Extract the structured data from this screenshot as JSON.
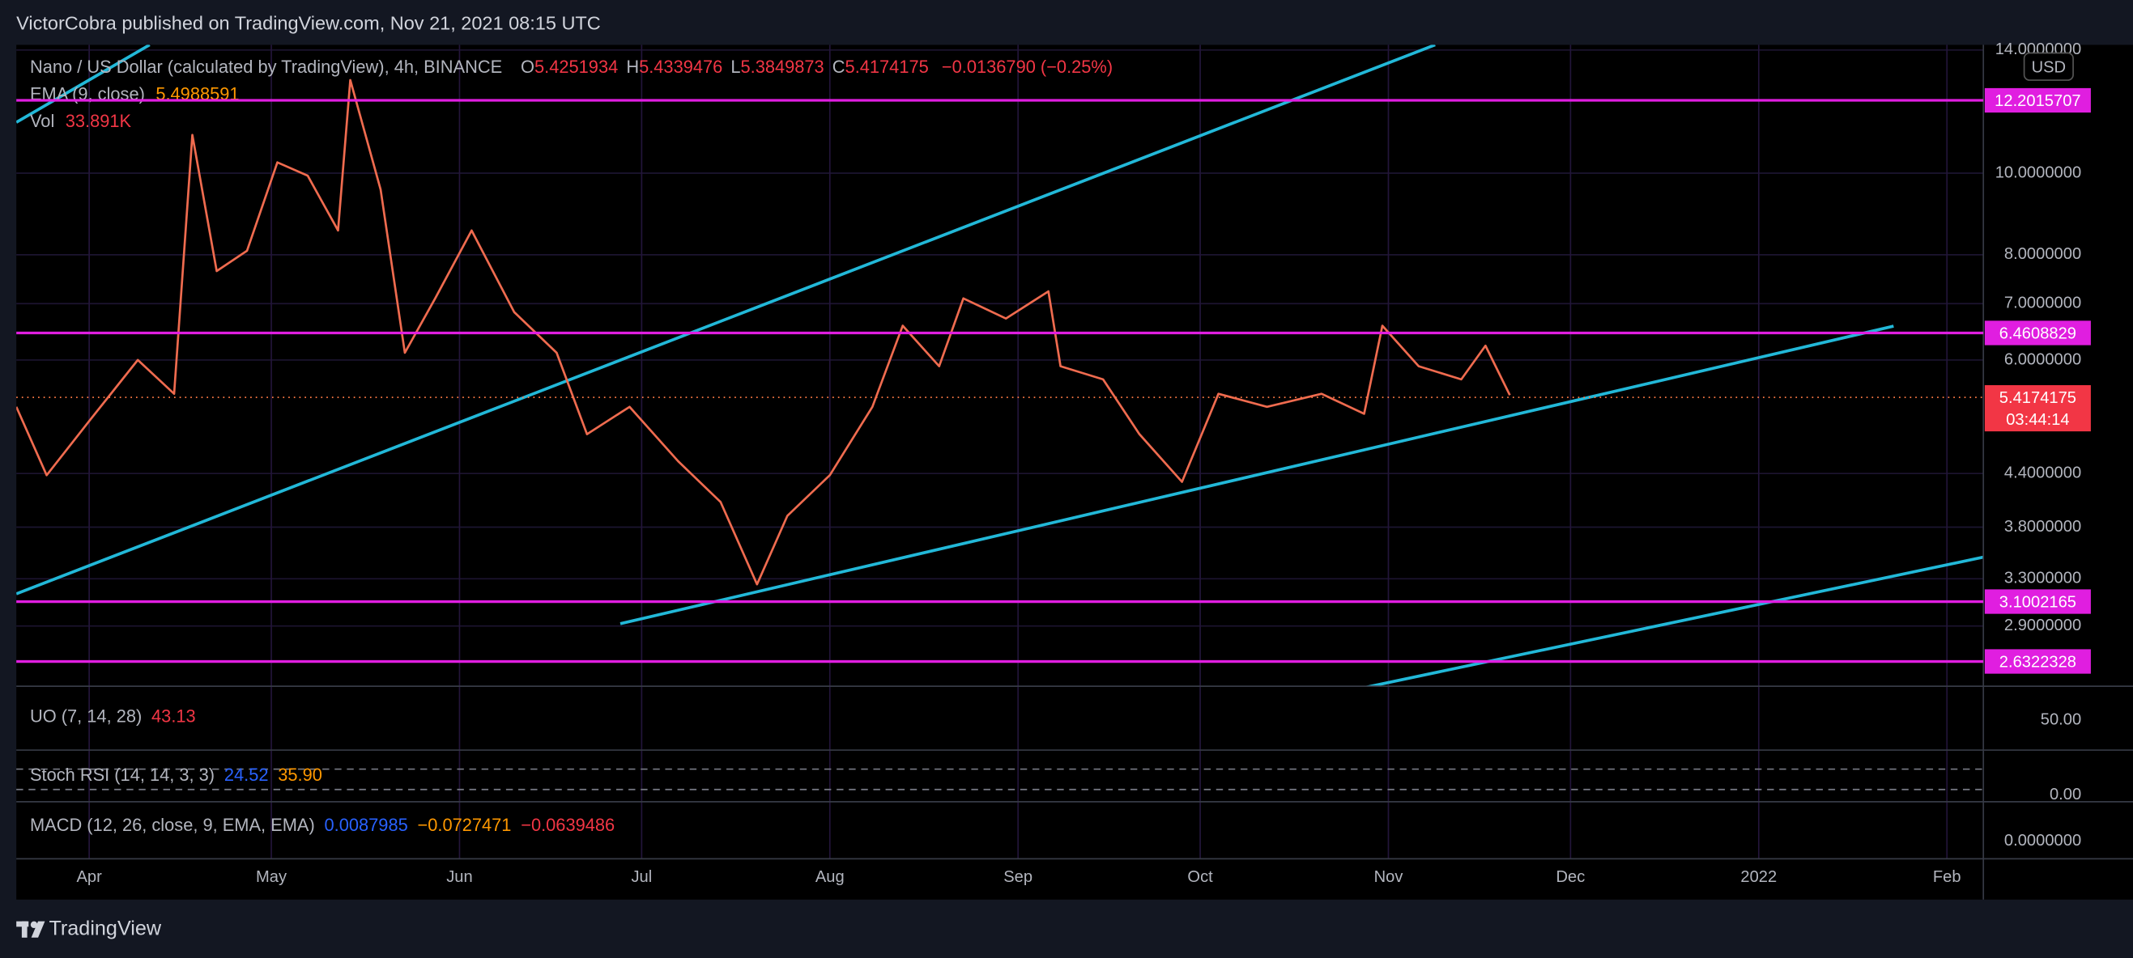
{
  "header": {
    "title": "VictorCobra published on TradingView.com, Nov 21, 2021 08:15 UTC"
  },
  "chart_data": {
    "type": "line",
    "symbol": "Nano / US Dollar (calculated by TradingView), 4h, BINANCE",
    "ohlc": [
      {
        "label": "O",
        "value": "5.4251934"
      },
      {
        "label": "H",
        "value": "5.4339476"
      },
      {
        "label": "L",
        "value": "5.3849873"
      },
      {
        "label": "C",
        "value": "5.4174175"
      }
    ],
    "change": "−0.0136790 (−0.25%)",
    "indicators": [
      {
        "name": "EMA (9, close)",
        "value": "5.4988591"
      },
      {
        "name": "Vol",
        "value": "33.891K"
      }
    ],
    "currency": "USD",
    "color": "#ef6b4f",
    "x": [
      "2021-03-20",
      "2021-03-25",
      "2021-04-01",
      "2021-04-09",
      "2021-04-15",
      "2021-04-18",
      "2021-04-22",
      "2021-04-27",
      "2021-05-02",
      "2021-05-07",
      "2021-05-12",
      "2021-05-14",
      "2021-05-19",
      "2021-05-23",
      "2021-05-28",
      "2021-06-03",
      "2021-06-10",
      "2021-06-17",
      "2021-06-22",
      "2021-06-29",
      "2021-07-07",
      "2021-07-14",
      "2021-07-20",
      "2021-07-25",
      "2021-08-01",
      "2021-08-08",
      "2021-08-13",
      "2021-08-19",
      "2021-08-23",
      "2021-08-30",
      "2021-09-06",
      "2021-09-08",
      "2021-09-15",
      "2021-09-21",
      "2021-09-28",
      "2021-10-04",
      "2021-10-12",
      "2021-10-21",
      "2021-10-28",
      "2021-10-31",
      "2021-11-06",
      "2021-11-13",
      "2021-11-17",
      "2021-11-21"
    ],
    "values": [
      5.28,
      4.38,
      5.08,
      6.0,
      5.47,
      11.1,
      7.65,
      8.09,
      10.3,
      9.93,
      8.55,
      12.9,
      9.56,
      6.12,
      7.1,
      8.55,
      6.84,
      6.12,
      4.9,
      5.28,
      4.55,
      4.07,
      3.25,
      3.92,
      4.38,
      5.28,
      6.59,
      5.9,
      7.1,
      6.72,
      7.24,
      5.9,
      5.69,
      4.9,
      4.3,
      5.47,
      5.28,
      5.47,
      5.18,
      6.59,
      5.9,
      5.69,
      6.24,
      5.45
    ],
    "xlim": [
      "2021-03-20",
      "2022-02-07"
    ],
    "xticks": [
      {
        "value": "2021-04-01",
        "label": "Apr"
      },
      {
        "value": "2021-05-01",
        "label": "May"
      },
      {
        "value": "2021-06-01",
        "label": "Jun"
      },
      {
        "value": "2021-07-01",
        "label": "Jul"
      },
      {
        "value": "2021-08-01",
        "label": "Aug"
      },
      {
        "value": "2021-09-01",
        "label": "Sep"
      },
      {
        "value": "2021-10-01",
        "label": "Oct"
      },
      {
        "value": "2021-11-01",
        "label": "Nov"
      },
      {
        "value": "2021-12-01",
        "label": "Dec"
      },
      {
        "value": "2022-01-01",
        "label": "2022"
      },
      {
        "value": "2022-02-01",
        "label": "Feb"
      }
    ],
    "ylim": [
      2.46,
      14.2
    ],
    "log_scale": true,
    "grid": true,
    "yticks": [
      {
        "value": 14,
        "label": "14.0000000"
      },
      {
        "value": 10,
        "label": "10.0000000"
      },
      {
        "value": 8,
        "label": "8.0000000"
      },
      {
        "value": 7,
        "label": "7.0000000"
      },
      {
        "value": 6,
        "label": "6.0000000"
      },
      {
        "value": 4.4,
        "label": "4.4000000"
      },
      {
        "value": 3.8,
        "label": "3.8000000"
      },
      {
        "value": 3.3,
        "label": "3.3000000"
      },
      {
        "value": 2.9,
        "label": "2.9000000"
      }
    ],
    "levels": [
      12.2015707,
      6.4608829,
      3.1002165,
      2.6322328
    ],
    "level_color": "#e01ee0",
    "last_price": 5.4174175,
    "countdown": "03:44:14",
    "last_color": "#f23645"
  },
  "panes": [
    {
      "title": "UO (7, 14, 28)",
      "values": [
        "43.13"
      ],
      "axis_label": "50.00"
    },
    {
      "title": "Stoch RSI (14, 14, 3, 3)",
      "values": [
        "24.52",
        "35.90"
      ],
      "axis_label": "0.00"
    },
    {
      "title": "MACD (12, 26, close, 9, EMA, EMA)",
      "values": [
        "0.0087985",
        "−0.0727471",
        "−0.0639486"
      ],
      "axis_label": "0.0000000"
    }
  ],
  "footer": {
    "brand": "TradingView"
  }
}
